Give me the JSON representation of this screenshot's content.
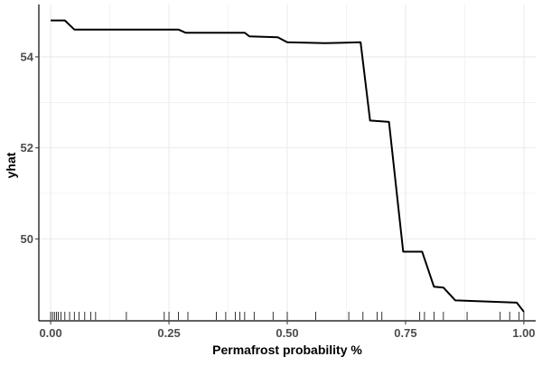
{
  "chart_data": {
    "type": "line",
    "title": "",
    "xlabel": "Permafrost probability %",
    "ylabel": "yhat",
    "xlim": [
      -0.025,
      1.025
    ],
    "ylim": [
      48.2,
      55.15
    ],
    "grid": true,
    "legend": "none",
    "colors": {
      "line": "#000000",
      "grid": "#ebebeb",
      "axis": "#000000",
      "tick_label": "#4d4d4d",
      "background": "#ffffff"
    },
    "x_ticks": [
      0.0,
      0.25,
      0.5,
      0.75,
      1.0
    ],
    "x_tick_labels": [
      "0.00",
      "0.25",
      "0.50",
      "0.75",
      "1.00"
    ],
    "y_ticks": [
      50,
      52,
      54
    ],
    "y_tick_labels": [
      "50",
      "52",
      "54"
    ],
    "series": [
      {
        "x": [
          0.0,
          0.03,
          0.05,
          0.27,
          0.285,
          0.41,
          0.42,
          0.48,
          0.5,
          0.58,
          0.655,
          0.675,
          0.715,
          0.745,
          0.785,
          0.81,
          0.83,
          0.855,
          0.985,
          1.0
        ],
        "y": [
          54.8,
          54.8,
          54.6,
          54.6,
          54.53,
          54.53,
          54.45,
          54.43,
          54.32,
          54.3,
          54.32,
          52.6,
          52.57,
          49.72,
          49.72,
          48.95,
          48.93,
          48.65,
          48.6,
          48.4
        ]
      }
    ],
    "rug_x": [
      0.0,
      0.004,
      0.008,
      0.012,
      0.016,
      0.022,
      0.03,
      0.04,
      0.05,
      0.06,
      0.072,
      0.085,
      0.095,
      0.16,
      0.24,
      0.25,
      0.27,
      0.29,
      0.35,
      0.37,
      0.39,
      0.4,
      0.41,
      0.43,
      0.47,
      0.5,
      0.56,
      0.63,
      0.66,
      0.69,
      0.7,
      0.78,
      0.79,
      0.81,
      0.83,
      0.88,
      0.95,
      0.97,
      0.99,
      1.0
    ]
  }
}
